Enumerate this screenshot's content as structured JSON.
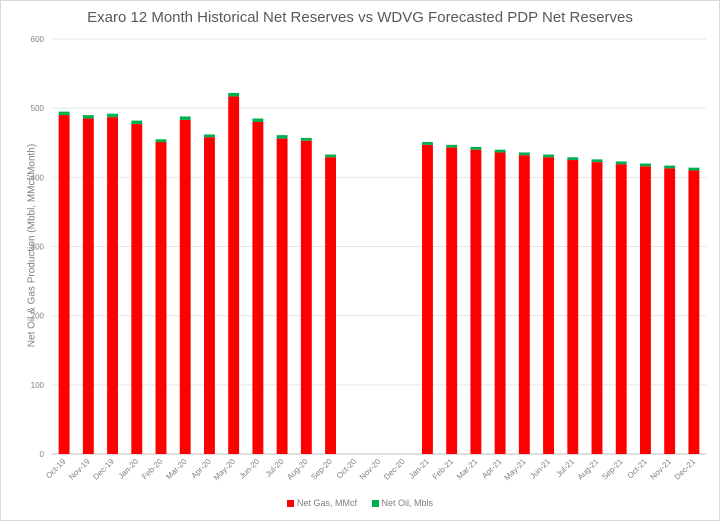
{
  "chart_data": {
    "type": "bar",
    "stacked": true,
    "title": "Exaro 12 Month Historical Net Reserves vs WDVG Forecasted PDP Net Reserves",
    "ylabel": "Net Oil & Gas Production (Mbbl, MMcf/Month)",
    "xlabel": "",
    "ylim": [
      0,
      600
    ],
    "yticks": [
      0,
      100,
      200,
      300,
      400,
      500,
      600
    ],
    "grid": true,
    "legend_position": "bottom",
    "categories": [
      "Oct-19",
      "Nov-19",
      "Dec-19",
      "Jan-20",
      "Feb-20",
      "Mar-20",
      "Apr-20",
      "May-20",
      "Jun-20",
      "Jul-20",
      "Aug-20",
      "Sep-20",
      "Oct-20",
      "Nov-20",
      "Dec-20",
      "Jan-21",
      "Feb-21",
      "Mar-21",
      "Apr-21",
      "May-21",
      "Jun-21",
      "Jul-21",
      "Aug-21",
      "Sep-21",
      "Oct-21",
      "Nov-21",
      "Dec-21"
    ],
    "series": [
      {
        "name": "Net Gas, MMcf",
        "color": "#ff0000",
        "values": [
          490,
          485,
          487,
          477,
          451,
          483,
          458,
          517,
          480,
          456,
          453,
          429,
          0,
          0,
          0,
          447,
          443,
          440,
          436,
          432,
          429,
          425,
          422,
          419,
          416,
          413,
          410
        ]
      },
      {
        "name": "Net Oil, Mbls",
        "color": "#00b050",
        "values": [
          5,
          5,
          5,
          5,
          4,
          5,
          4,
          5,
          5,
          5,
          4,
          4,
          0,
          0,
          0,
          4,
          4,
          4,
          4,
          4,
          4,
          4,
          4,
          4,
          4,
          4,
          4
        ]
      }
    ]
  }
}
